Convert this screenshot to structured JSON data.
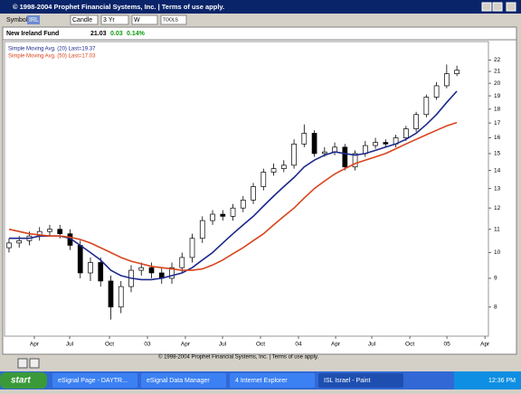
{
  "window": {
    "title": "© 1998-2004 Prophet Financial Systems, Inc.  |  Terms of use apply."
  },
  "toolbar": {
    "symbol_label": "Symbol",
    "symbol": "IRL",
    "chart_type": "Candle",
    "period": "3 Yr",
    "interval": "W",
    "tools": "TOOLS"
  },
  "fund": {
    "name": "New Ireland Fund",
    "last": "21.03",
    "change": "0.03",
    "change_pct": "0.14%"
  },
  "status": "© 1998-2004 Prophet Financial Systems, Inc.  |  Terms of use apply.",
  "taskbar": {
    "start": "start",
    "items": [
      "eSignal Page - DAYTR...",
      "eSignal Data Manager",
      "4 Internet Explorer",
      "ISL Israel - Paint"
    ],
    "clock": "12:36 PM"
  },
  "chart_data": {
    "type": "candlestick",
    "log": true,
    "x": [
      0,
      1,
      2,
      3,
      4,
      5,
      6,
      7,
      8,
      9,
      10,
      11,
      12,
      13,
      14,
      15,
      16,
      17,
      18,
      19,
      20,
      21,
      22,
      23,
      24,
      25,
      26,
      27,
      28,
      29,
      30,
      31,
      32,
      33,
      34,
      35,
      36,
      37,
      38,
      39,
      40,
      41,
      42,
      43,
      44
    ],
    "open": [
      10.2,
      10.4,
      10.5,
      10.7,
      10.9,
      11.0,
      10.8,
      10.3,
      9.2,
      9.6,
      8.9,
      8.0,
      8.7,
      9.3,
      9.4,
      9.2,
      9.0,
      9.4,
      9.8,
      10.6,
      11.4,
      11.7,
      11.6,
      12.0,
      12.4,
      13.1,
      13.9,
      14.1,
      14.3,
      15.6,
      16.3,
      15.0,
      15.1,
      15.4,
      14.2,
      15.0,
      15.5,
      15.7,
      15.6,
      16.0,
      16.6,
      17.6,
      18.9,
      19.8,
      20.8
    ],
    "high": [
      10.6,
      10.7,
      10.9,
      11.1,
      11.2,
      11.2,
      11.0,
      10.5,
      9.8,
      9.8,
      9.1,
      8.9,
      9.5,
      9.6,
      9.6,
      9.4,
      9.6,
      10.0,
      10.8,
      11.6,
      11.9,
      11.9,
      12.2,
      12.6,
      13.3,
      14.1,
      14.4,
      14.6,
      15.9,
      16.9,
      16.5,
      15.4,
      15.7,
      15.6,
      15.2,
      15.8,
      16.0,
      15.9,
      16.2,
      16.8,
      17.8,
      19.1,
      20.1,
      21.6,
      21.5
    ],
    "low": [
      10.0,
      10.2,
      10.3,
      10.5,
      10.7,
      10.6,
      10.1,
      9.0,
      8.9,
      8.7,
      7.6,
      7.8,
      8.5,
      9.1,
      9.0,
      8.8,
      8.8,
      9.2,
      9.6,
      10.4,
      11.2,
      11.4,
      11.4,
      11.8,
      12.2,
      12.9,
      13.7,
      13.9,
      14.1,
      15.4,
      14.8,
      14.8,
      14.9,
      14.0,
      14.0,
      14.8,
      15.3,
      15.4,
      15.4,
      15.8,
      16.4,
      17.4,
      18.7,
      19.6,
      20.6
    ],
    "close": [
      10.4,
      10.5,
      10.7,
      10.9,
      11.0,
      10.8,
      10.3,
      9.2,
      9.6,
      8.9,
      8.0,
      8.7,
      9.3,
      9.4,
      9.2,
      9.0,
      9.4,
      9.8,
      10.6,
      11.4,
      11.7,
      11.6,
      12.0,
      12.4,
      13.1,
      13.9,
      14.1,
      14.3,
      15.6,
      16.3,
      15.0,
      15.1,
      15.4,
      14.2,
      15.0,
      15.5,
      15.7,
      15.6,
      16.0,
      16.6,
      17.6,
      18.9,
      19.8,
      20.8,
      21.1
    ],
    "series": [
      {
        "name": "Simple Moving Avg. (20) Last=19.37",
        "color": "#1c2a8c",
        "values": [
          10.6,
          10.6,
          10.6,
          10.7,
          10.7,
          10.7,
          10.6,
          10.3,
          10.0,
          9.7,
          9.3,
          9.1,
          9.0,
          8.95,
          8.95,
          9.0,
          9.1,
          9.2,
          9.4,
          9.7,
          10.0,
          10.4,
          10.8,
          11.2,
          11.6,
          12.1,
          12.6,
          13.1,
          13.6,
          14.2,
          14.6,
          14.9,
          15.1,
          15.0,
          14.9,
          15.0,
          15.2,
          15.4,
          15.6,
          15.9,
          16.3,
          16.9,
          17.6,
          18.5,
          19.37
        ]
      },
      {
        "name": "Simple Moving Avg. (50) Last=17.03",
        "color": "#d9441c",
        "values": [
          11.0,
          10.9,
          10.8,
          10.75,
          10.7,
          10.7,
          10.65,
          10.55,
          10.4,
          10.2,
          10.0,
          9.8,
          9.65,
          9.55,
          9.45,
          9.4,
          9.35,
          9.3,
          9.3,
          9.35,
          9.5,
          9.7,
          9.95,
          10.2,
          10.5,
          10.8,
          11.2,
          11.6,
          12.0,
          12.5,
          13.0,
          13.4,
          13.8,
          14.1,
          14.4,
          14.6,
          14.8,
          15.0,
          15.3,
          15.6,
          15.9,
          16.2,
          16.5,
          16.8,
          17.03
        ]
      }
    ],
    "up_color": "#ffffff",
    "down_color": "#000000",
    "xlim": [
      -0.44,
      47.1
    ],
    "xticks": [
      {
        "value": 2.49,
        "label": "Apr"
      },
      {
        "value": 5.96,
        "label": "Jul"
      },
      {
        "value": 9.87,
        "label": "Oct"
      },
      {
        "value": 13.6,
        "label": "03"
      },
      {
        "value": 17.33,
        "label": "Apr"
      },
      {
        "value": 20.98,
        "label": "Jul"
      },
      {
        "value": 24.71,
        "label": "Oct"
      },
      {
        "value": 28.44,
        "label": "04"
      },
      {
        "value": 32.09,
        "label": "Apr"
      },
      {
        "value": 35.64,
        "label": "Jul"
      },
      {
        "value": 39.38,
        "label": "Oct"
      },
      {
        "value": 43.02,
        "label": "05"
      },
      {
        "value": 46.76,
        "label": "Apr"
      }
    ],
    "ylim": [
      7.1,
      22.7
    ],
    "yticks": [
      8,
      9,
      10,
      11,
      12,
      13,
      14,
      15,
      16,
      17,
      18,
      19,
      20,
      21,
      22
    ]
  }
}
